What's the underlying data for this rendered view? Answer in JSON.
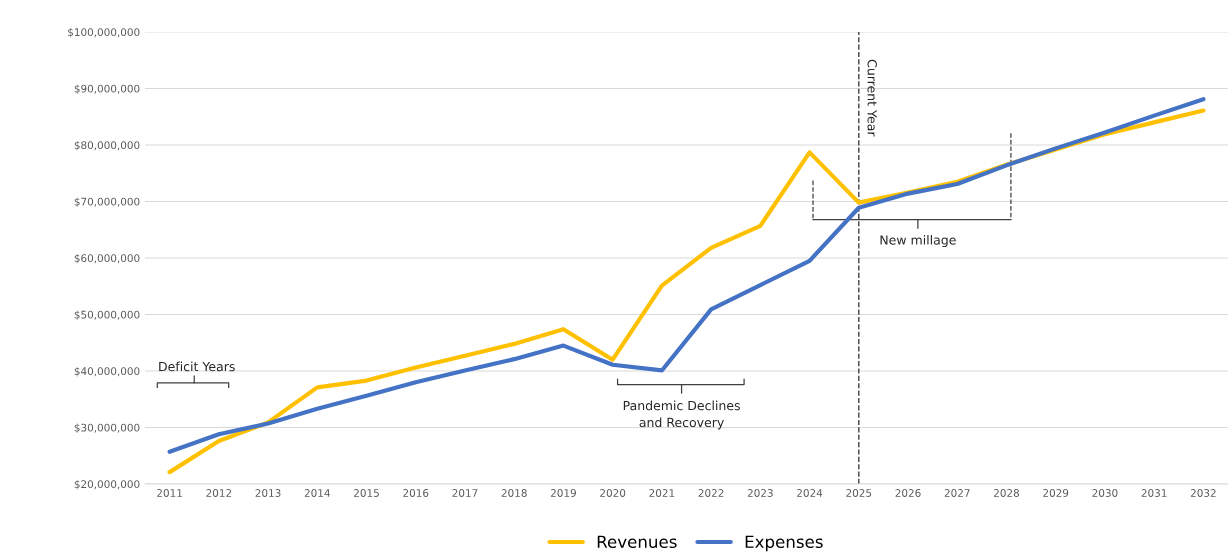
{
  "chart_data": {
    "type": "line",
    "categories": [
      "2011",
      "2012",
      "2013",
      "2014",
      "2015",
      "2016",
      "2017",
      "2018",
      "2019",
      "2020",
      "2021",
      "2022",
      "2023",
      "2024",
      "2025",
      "2026",
      "2027",
      "2028",
      "2029",
      "2030",
      "2031",
      "2032"
    ],
    "series": [
      {
        "name": "Revenues",
        "color": "#ffc000",
        "values": [
          22100000,
          27600000,
          30900000,
          37100000,
          38300000,
          40600000,
          42700000,
          44800000,
          47400000,
          42000000,
          55100000,
          61800000,
          65700000,
          78700000,
          69800000,
          71600000,
          73500000,
          76500000,
          79200000,
          81900000,
          84000000,
          86100000
        ]
      },
      {
        "name": "Expenses",
        "color": "#4472c4",
        "values": [
          25700000,
          28800000,
          30700000,
          33300000,
          35600000,
          38000000,
          40100000,
          42100000,
          44500000,
          41100000,
          40100000,
          50900000,
          55200000,
          59500000,
          68900000,
          71400000,
          73100000,
          76400000,
          79400000,
          82200000,
          85200000,
          88100000
        ]
      }
    ],
    "ylim": [
      20000000,
      100000000
    ],
    "yticks": [
      {
        "value": 20000000,
        "label": "$20,000,000"
      },
      {
        "value": 30000000,
        "label": "$30,000,000"
      },
      {
        "value": 40000000,
        "label": "$40,000,000"
      },
      {
        "value": 50000000,
        "label": "$50,000,000"
      },
      {
        "value": 60000000,
        "label": "$60,000,000"
      },
      {
        "value": 70000000,
        "label": "$70,000,000"
      },
      {
        "value": 80000000,
        "label": "$80,000,000"
      },
      {
        "value": 90000000,
        "label": "$90,000,000"
      },
      {
        "value": 100000000,
        "label": "$100,000,000"
      }
    ],
    "ref_lines": [
      {
        "axis": "x",
        "value": "2025",
        "label": "Current Year",
        "color": "#404040",
        "line_style": "dashed"
      }
    ],
    "annotations": [
      "Deficit Years",
      "Pandemic Declines\nand Recovery",
      "New millage"
    ],
    "grid": "y",
    "legend": "bottom",
    "marker": "none",
    "line_style": "solid"
  }
}
